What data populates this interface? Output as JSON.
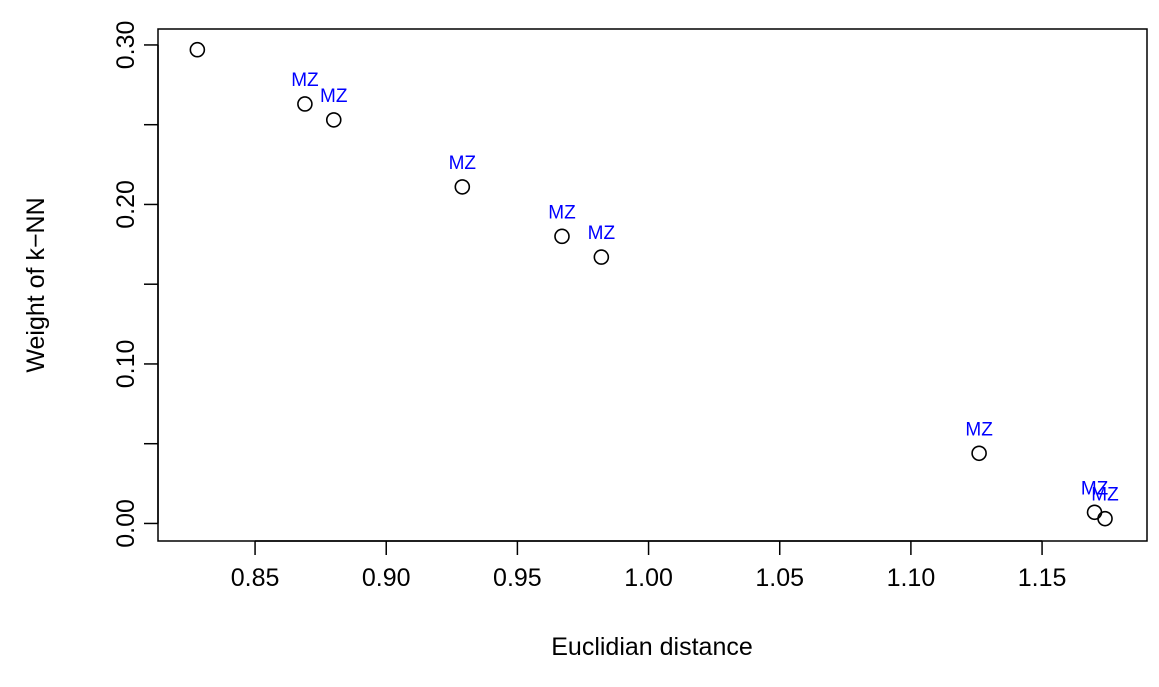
{
  "chart_data": {
    "type": "scatter",
    "title": "",
    "xlabel": "Euclidian distance",
    "ylabel": "Weight of k−NN",
    "xlim": [
      0.813,
      1.19
    ],
    "ylim": [
      -0.011,
      0.31
    ],
    "x_ticks": [
      0.85,
      0.9,
      0.95,
      1.0,
      1.05,
      1.1,
      1.15
    ],
    "x_tick_labels": [
      "0.85",
      "0.90",
      "0.95",
      "1.00",
      "1.05",
      "1.10",
      "1.15"
    ],
    "y_ticks": [
      0.0,
      0.05,
      0.1,
      0.15,
      0.2,
      0.25,
      0.3
    ],
    "y_tick_labels": [
      "0.00",
      "",
      "0.10",
      "",
      "0.20",
      "",
      "0.30"
    ],
    "grid": false,
    "legend": "none",
    "label_color": "#0000ff",
    "points": [
      {
        "x": 0.828,
        "y": 0.297,
        "label": ""
      },
      {
        "x": 0.869,
        "y": 0.263,
        "label": "MZ"
      },
      {
        "x": 0.88,
        "y": 0.253,
        "label": "MZ"
      },
      {
        "x": 0.929,
        "y": 0.211,
        "label": "MZ"
      },
      {
        "x": 0.967,
        "y": 0.18,
        "label": "MZ"
      },
      {
        "x": 0.982,
        "y": 0.167,
        "label": "MZ"
      },
      {
        "x": 1.126,
        "y": 0.044,
        "label": "MZ"
      },
      {
        "x": 1.17,
        "y": 0.007,
        "label": "MZ"
      },
      {
        "x": 1.174,
        "y": 0.003,
        "label": "MZ"
      }
    ]
  }
}
